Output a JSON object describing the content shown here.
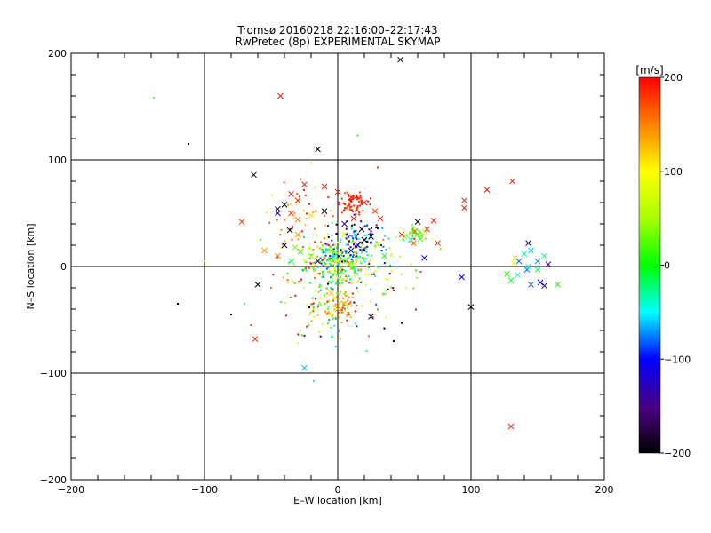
{
  "chart_data": {
    "type": "scatter",
    "title": "Tromsø 20160218 22:16:00–22:17:43",
    "subtitle": "RwPretec (8p) EXPERIMENTAL SKYMAP",
    "xlabel": "E–W location [km]",
    "ylabel": "N–S location [km]",
    "xlim": [
      -200,
      200
    ],
    "ylim": [
      -200,
      200
    ],
    "xticks": [
      -200,
      -100,
      0,
      100,
      200
    ],
    "yticks": [
      -200,
      -100,
      0,
      100,
      200
    ],
    "xtick_labels": [
      "−200",
      "−100",
      "0",
      "100",
      "200"
    ],
    "ytick_labels": [
      "200",
      "100",
      "0",
      "−100",
      "−200"
    ],
    "grid": true,
    "colorbar": {
      "label": "[m/s]",
      "range": [
        -200,
        200
      ],
      "ticks": [
        200,
        100,
        0,
        -100,
        -200
      ],
      "tick_labels": [
        "200",
        "100",
        "0",
        "−100",
        "−200"
      ]
    },
    "markers_cross": [
      {
        "x": 47,
        "y": 194,
        "v": -200
      },
      {
        "x": -43,
        "y": 160,
        "v": 190
      },
      {
        "x": -15,
        "y": 110,
        "v": -190
      },
      {
        "x": -63,
        "y": 86,
        "v": -200
      },
      {
        "x": -25,
        "y": 77,
        "v": 190
      },
      {
        "x": -10,
        "y": 75,
        "v": 190
      },
      {
        "x": -35,
        "y": 68,
        "v": 190
      },
      {
        "x": -30,
        "y": 62,
        "v": 185
      },
      {
        "x": -45,
        "y": 54,
        "v": -190
      },
      {
        "x": -40,
        "y": 58,
        "v": -200
      },
      {
        "x": -45,
        "y": 50,
        "v": -110
      },
      {
        "x": -35,
        "y": 50,
        "v": 180
      },
      {
        "x": -30,
        "y": 44,
        "v": 160
      },
      {
        "x": -20,
        "y": 48,
        "v": 110
      },
      {
        "x": -10,
        "y": 52,
        "v": -200
      },
      {
        "x": -36,
        "y": 34,
        "v": -200
      },
      {
        "x": -30,
        "y": 30,
        "v": 140
      },
      {
        "x": -72,
        "y": 42,
        "v": 180
      },
      {
        "x": -55,
        "y": 15,
        "v": 140
      },
      {
        "x": -40,
        "y": 20,
        "v": -200
      },
      {
        "x": -32,
        "y": 18,
        "v": 40
      },
      {
        "x": -28,
        "y": 14,
        "v": 10
      },
      {
        "x": -20,
        "y": 10,
        "v": 50
      },
      {
        "x": -45,
        "y": 10,
        "v": 150
      },
      {
        "x": -35,
        "y": 5,
        "v": -30
      },
      {
        "x": -15,
        "y": 5,
        "v": -160
      },
      {
        "x": -60,
        "y": -17,
        "v": -200
      },
      {
        "x": -25,
        "y": -95,
        "v": -60
      },
      {
        "x": -62,
        "y": -68,
        "v": 185
      },
      {
        "x": -5,
        "y": -25,
        "v": 120
      },
      {
        "x": 5,
        "y": -35,
        "v": 130
      },
      {
        "x": 0,
        "y": -40,
        "v": 140
      },
      {
        "x": 25,
        "y": -47,
        "v": -170
      },
      {
        "x": 10,
        "y": 15,
        "v": -110
      },
      {
        "x": 15,
        "y": 20,
        "v": -130
      },
      {
        "x": 20,
        "y": 25,
        "v": -200
      },
      {
        "x": 25,
        "y": 28,
        "v": -200
      },
      {
        "x": 18,
        "y": 35,
        "v": -190
      },
      {
        "x": 5,
        "y": 40,
        "v": -140
      },
      {
        "x": 12,
        "y": 45,
        "v": 190
      },
      {
        "x": 32,
        "y": 45,
        "v": 185
      },
      {
        "x": 28,
        "y": 52,
        "v": 175
      },
      {
        "x": 20,
        "y": 60,
        "v": 190
      },
      {
        "x": 10,
        "y": 65,
        "v": 190
      },
      {
        "x": 0,
        "y": 70,
        "v": 185
      },
      {
        "x": 5,
        "y": 30,
        "v": 70
      },
      {
        "x": -5,
        "y": 15,
        "v": 30
      },
      {
        "x": 0,
        "y": 5,
        "v": 90
      },
      {
        "x": -2,
        "y": 10,
        "v": -40
      },
      {
        "x": 8,
        "y": 2,
        "v": 50
      },
      {
        "x": 3,
        "y": -5,
        "v": 20
      },
      {
        "x": 30,
        "y": 20,
        "v": 70
      },
      {
        "x": 35,
        "y": 10,
        "v": 10
      },
      {
        "x": 50,
        "y": 28,
        "v": 30
      },
      {
        "x": 55,
        "y": 25,
        "v": -50
      },
      {
        "x": 60,
        "y": 30,
        "v": 20
      },
      {
        "x": 60,
        "y": 42,
        "v": -200
      },
      {
        "x": 62,
        "y": 26,
        "v": 10
      },
      {
        "x": 58,
        "y": 33,
        "v": 160
      },
      {
        "x": 67,
        "y": 35,
        "v": 185
      },
      {
        "x": 72,
        "y": 43,
        "v": 190
      },
      {
        "x": 75,
        "y": 22,
        "v": 185
      },
      {
        "x": 65,
        "y": 8,
        "v": -110
      },
      {
        "x": 57,
        "y": 22,
        "v": 160
      },
      {
        "x": 48,
        "y": 30,
        "v": 180
      },
      {
        "x": 95,
        "y": 62,
        "v": 185
      },
      {
        "x": 95,
        "y": 55,
        "v": 190
      },
      {
        "x": 112,
        "y": 72,
        "v": 190
      },
      {
        "x": 131,
        "y": 80,
        "v": 185
      },
      {
        "x": 93,
        "y": -10,
        "v": -110
      },
      {
        "x": 100,
        "y": -38,
        "v": -200
      },
      {
        "x": 130,
        "y": -150,
        "v": 190
      },
      {
        "x": 143,
        "y": 22,
        "v": -120
      },
      {
        "x": 140,
        "y": 12,
        "v": -30
      },
      {
        "x": 133,
        "y": 8,
        "v": 110
      },
      {
        "x": 136,
        "y": 5,
        "v": -80
      },
      {
        "x": 145,
        "y": 15,
        "v": -60
      },
      {
        "x": 150,
        "y": 5,
        "v": -70
      },
      {
        "x": 155,
        "y": 10,
        "v": -30
      },
      {
        "x": 158,
        "y": 2,
        "v": -130
      },
      {
        "x": 150,
        "y": -3,
        "v": -20
      },
      {
        "x": 142,
        "y": -3,
        "v": -80
      },
      {
        "x": 135,
        "y": -8,
        "v": -40
      },
      {
        "x": 130,
        "y": -13,
        "v": -10
      },
      {
        "x": 127,
        "y": -7,
        "v": 10
      },
      {
        "x": 145,
        "y": -17,
        "v": -80
      },
      {
        "x": 152,
        "y": -15,
        "v": -100
      },
      {
        "x": 155,
        "y": -18,
        "v": -120
      },
      {
        "x": 165,
        "y": -17,
        "v": 0
      },
      {
        "x": 143,
        "y": 0,
        "v": -50
      },
      {
        "x": 132,
        "y": 3,
        "v": 90
      }
    ],
    "markers_dot": [
      {
        "x": -138,
        "y": 158,
        "v": 20
      },
      {
        "x": -112,
        "y": 115,
        "v": -200
      },
      {
        "x": 15,
        "y": 123,
        "v": 10
      },
      {
        "x": 30,
        "y": 93,
        "v": 180
      },
      {
        "x": -120,
        "y": -35,
        "v": -200
      },
      {
        "x": -100,
        "y": 5,
        "v": 120
      },
      {
        "x": -80,
        "y": -45,
        "v": -200
      },
      {
        "x": -70,
        "y": -35,
        "v": -50
      },
      {
        "x": -65,
        "y": -55,
        "v": 180
      },
      {
        "x": -58,
        "y": 25,
        "v": 30
      },
      {
        "x": -50,
        "y": -20,
        "v": 150
      },
      {
        "x": 35,
        "y": -58,
        "v": -200
      },
      {
        "x": 42,
        "y": -70,
        "v": -200
      },
      {
        "x": 48,
        "y": -53,
        "v": -200
      },
      {
        "x": 55,
        "y": 2,
        "v": 110
      },
      {
        "x": -28,
        "y": -60,
        "v": 120
      },
      {
        "x": -30,
        "y": -72,
        "v": 100
      }
    ],
    "cluster_dots": [
      {
        "cx": 0,
        "cy": 5,
        "sx": 12,
        "sy": 10,
        "n": 260,
        "vmean": 20,
        "vspread": 140
      },
      {
        "cx": 10,
        "cy": 60,
        "sx": 6,
        "sy": 5,
        "n": 70,
        "vmean": 185,
        "vspread": 12
      },
      {
        "cx": -10,
        "cy": -35,
        "sx": 14,
        "sy": 18,
        "n": 120,
        "vmean": 50,
        "vspread": 160
      },
      {
        "cx": 3,
        "cy": -35,
        "sx": 5,
        "sy": 6,
        "n": 40,
        "vmean": 140,
        "vspread": 30
      },
      {
        "cx": 15,
        "cy": 25,
        "sx": 10,
        "sy": 10,
        "n": 90,
        "vmean": -120,
        "vspread": 90
      },
      {
        "cx": -30,
        "cy": 40,
        "sx": 12,
        "sy": 25,
        "n": 60,
        "vmean": 150,
        "vspread": 60
      },
      {
        "cx": 30,
        "cy": -10,
        "sx": 18,
        "sy": 22,
        "n": 80,
        "vmean": 40,
        "vspread": 150
      },
      {
        "cx": 58,
        "cy": 30,
        "sx": 5,
        "sy": 4,
        "n": 30,
        "vmean": 40,
        "vspread": 60
      }
    ]
  }
}
